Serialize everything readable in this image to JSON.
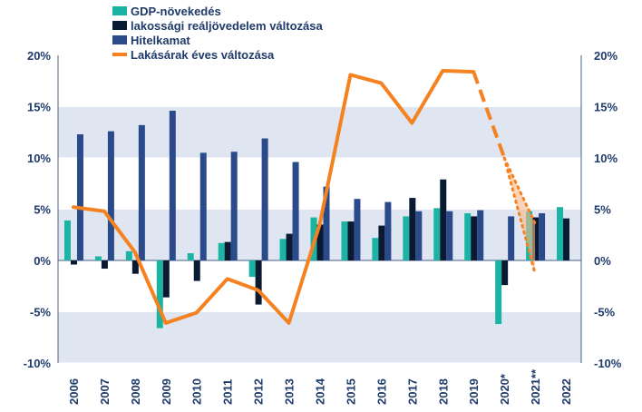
{
  "chart_data": {
    "type": "bar",
    "title": "",
    "categories": [
      "2006",
      "2007",
      "2008",
      "2009",
      "2010",
      "2011",
      "2012",
      "2013",
      "2014",
      "2015",
      "2016",
      "2017",
      "2018",
      "2019",
      "2020*",
      "2021**",
      "2022"
    ],
    "ylim": [
      -10,
      20
    ],
    "y_ticks": [
      "-10%",
      "-5%",
      "0%",
      "5%",
      "10%",
      "15%",
      "20%"
    ],
    "y_tick_values": [
      -10,
      -5,
      0,
      5,
      10,
      15,
      20
    ],
    "legend_position": "top-left",
    "series": [
      {
        "name": "GDP-növekedés",
        "type": "bar",
        "color": "#1bb3a4",
        "values": [
          3.9,
          0.4,
          0.9,
          -6.6,
          0.7,
          1.7,
          -1.6,
          2.1,
          4.2,
          3.8,
          2.2,
          4.3,
          5.1,
          4.6,
          -6.2,
          4.8,
          5.2
        ]
      },
      {
        "name": "lakossági reáljövedelem változása",
        "type": "bar",
        "color": "#0b1a33",
        "values": [
          -0.4,
          -0.8,
          -1.3,
          -3.6,
          -2.0,
          1.8,
          -4.3,
          2.6,
          3.5,
          3.8,
          3.4,
          6.1,
          7.9,
          4.3,
          -2.4,
          4.2,
          4.1
        ]
      },
      {
        "name": "Hitelkamat",
        "type": "bar",
        "color": "#2a4a8a",
        "values": [
          12.3,
          12.6,
          13.2,
          14.6,
          10.5,
          10.6,
          11.9,
          9.6,
          7.2,
          6.0,
          5.7,
          4.8,
          4.8,
          4.9,
          4.3,
          4.6,
          null
        ]
      },
      {
        "name": "Lakásárak éves változása",
        "type": "line",
        "color": "#f58220",
        "values": [
          5.2,
          4.8,
          0.8,
          -6.1,
          -5.1,
          -1.8,
          -2.9,
          -6.1,
          3.5,
          18.1,
          17.3,
          13.4,
          18.5,
          18.4,
          null,
          null,
          null
        ],
        "projection": {
          "categories": [
            "2019",
            "2020*",
            "2021**"
          ],
          "dashed_values": [
            18.4,
            10.0,
            4.4
          ],
          "dotted_high": [
            10.0,
            3.6
          ],
          "dotted_low": [
            10.0,
            -1.3
          ]
        }
      }
    ]
  }
}
